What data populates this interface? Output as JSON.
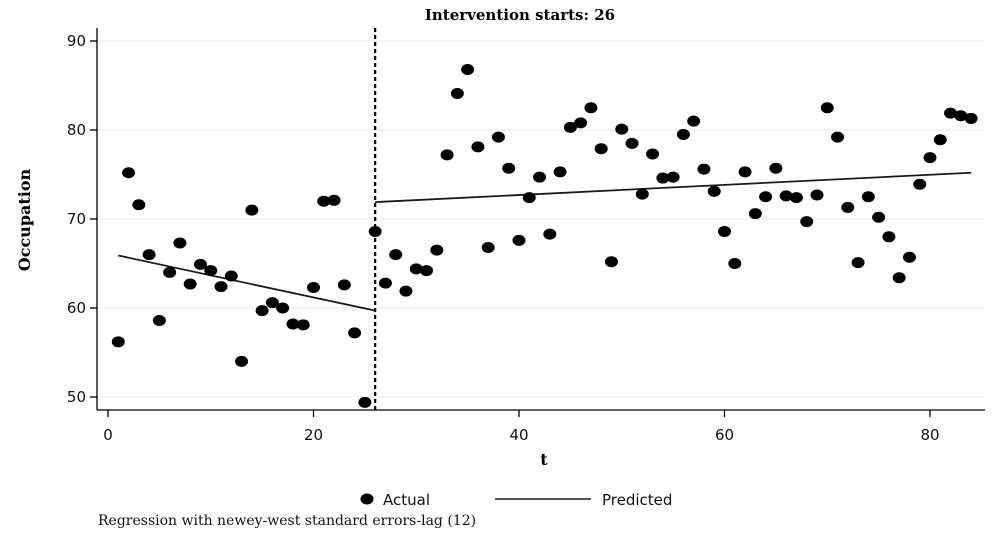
{
  "chart_data": {
    "type": "scatter",
    "title": "Intervention starts: 26",
    "xlabel": "t",
    "ylabel": "Occupation",
    "xlim": [
      0,
      85
    ],
    "ylim": [
      48.5,
      91
    ],
    "xticks": [
      0,
      20,
      40,
      60,
      80
    ],
    "yticks": [
      50,
      60,
      70,
      80,
      90
    ],
    "grid": true,
    "intervention_x": 26,
    "series": [
      {
        "name": "Actual",
        "kind": "scatter",
        "x": [
          1,
          2,
          3,
          4,
          5,
          6,
          7,
          8,
          9,
          10,
          11,
          12,
          13,
          14,
          15,
          16,
          17,
          18,
          19,
          20,
          21,
          22,
          23,
          24,
          25,
          26,
          27,
          28,
          29,
          30,
          31,
          32,
          33,
          34,
          35,
          36,
          37,
          38,
          39,
          40,
          41,
          42,
          43,
          44,
          45,
          46,
          47,
          48,
          49,
          50,
          51,
          52,
          53,
          54,
          55,
          56,
          57,
          58,
          59,
          60,
          61,
          62,
          63,
          64,
          65,
          66,
          67,
          68,
          69,
          70,
          71,
          72,
          73,
          74,
          75,
          76,
          77,
          78,
          79,
          80,
          81,
          82,
          83,
          84
        ],
        "y": [
          56.2,
          75.2,
          71.6,
          66.0,
          58.6,
          64.0,
          67.3,
          62.7,
          64.9,
          64.2,
          62.4,
          63.6,
          54.0,
          71.0,
          59.7,
          60.6,
          60.0,
          58.2,
          58.1,
          62.3,
          72.0,
          72.1,
          62.6,
          57.2,
          49.4,
          68.6,
          62.8,
          66.0,
          61.9,
          64.4,
          64.2,
          66.5,
          77.2,
          84.1,
          86.8,
          78.1,
          66.8,
          79.2,
          75.7,
          67.6,
          72.4,
          74.7,
          68.3,
          75.3,
          80.3,
          80.8,
          82.5,
          77.9,
          65.2,
          80.1,
          78.5,
          72.8,
          77.3,
          74.6,
          74.7,
          79.5,
          81.0,
          75.6,
          73.1,
          68.6,
          65.0,
          75.3,
          70.6,
          72.5,
          75.7,
          72.6,
          72.4,
          69.7,
          72.7,
          82.5,
          79.2,
          71.3,
          65.1,
          72.5,
          70.2,
          68.0,
          63.4,
          65.7,
          73.9,
          76.9,
          78.9,
          81.9,
          81.6,
          81.3
        ]
      },
      {
        "name": "Predicted",
        "kind": "line",
        "segments": [
          {
            "x": [
              1,
              26
            ],
            "y": [
              65.9,
              59.7
            ]
          },
          {
            "x": [
              26,
              84
            ],
            "y": [
              71.9,
              75.2
            ]
          }
        ]
      }
    ],
    "legend": {
      "placement": "bottom-center",
      "items": [
        "Actual",
        "Predicted"
      ]
    },
    "note": "Regression with newey-west standard errors-lag (12)"
  },
  "colors": {
    "points": "#000000",
    "line": "#1a1a1a",
    "grid": "#e6eef0",
    "axis": "#000000"
  }
}
